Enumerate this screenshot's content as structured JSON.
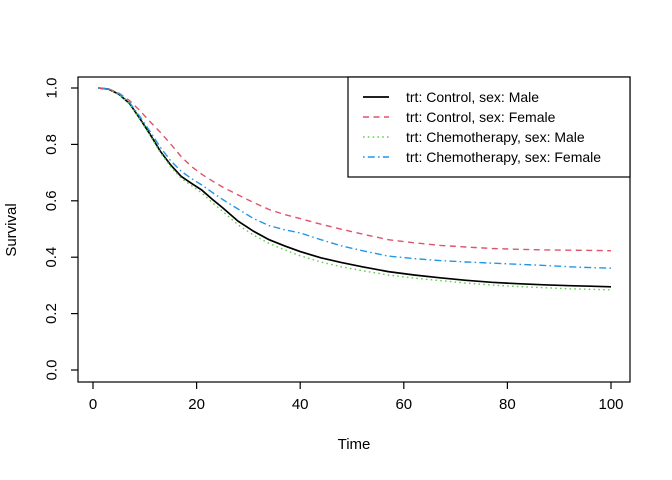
{
  "figure": {
    "background": "#ffffff",
    "frame_color": "#000000"
  },
  "chart_data": {
    "type": "line",
    "title": "",
    "xlabel": "Time",
    "ylabel": "Survival",
    "xlim": [
      0,
      100
    ],
    "ylim": [
      0.0,
      1.0
    ],
    "x_ticks": [
      0,
      20,
      40,
      60,
      80,
      100
    ],
    "x_tick_labels": [
      "0",
      "20",
      "40",
      "60",
      "80",
      "100"
    ],
    "y_ticks": [
      0.0,
      0.2,
      0.4,
      0.6,
      0.8,
      1.0
    ],
    "y_tick_labels": [
      "0.0",
      "0.2",
      "0.4",
      "0.6",
      "0.8",
      "1.0"
    ],
    "grid": false,
    "legend_position": "topright",
    "series": [
      {
        "name": "trt: Control, sex: Male",
        "color": "#000000",
        "linetype": "solid",
        "width": 1.7,
        "points": [
          [
            1,
            1.0
          ],
          [
            3,
            0.996
          ],
          [
            5,
            0.978
          ],
          [
            7,
            0.946
          ],
          [
            9,
            0.893
          ],
          [
            11,
            0.836
          ],
          [
            13,
            0.776
          ],
          [
            15,
            0.727
          ],
          [
            17,
            0.687
          ],
          [
            19,
            0.662
          ],
          [
            21,
            0.638
          ],
          [
            23,
            0.606
          ],
          [
            25,
            0.576
          ],
          [
            28,
            0.528
          ],
          [
            31,
            0.492
          ],
          [
            34,
            0.462
          ],
          [
            37,
            0.44
          ],
          [
            40,
            0.42
          ],
          [
            44,
            0.398
          ],
          [
            48,
            0.381
          ],
          [
            52,
            0.366
          ],
          [
            57,
            0.349
          ],
          [
            62,
            0.337
          ],
          [
            67,
            0.327
          ],
          [
            72,
            0.318
          ],
          [
            77,
            0.311
          ],
          [
            82,
            0.306
          ],
          [
            87,
            0.302
          ],
          [
            92,
            0.299
          ],
          [
            96,
            0.297
          ],
          [
            100,
            0.295
          ]
        ]
      },
      {
        "name": "trt: Control, sex: Female",
        "color": "#DF536B",
        "linetype": "dashed",
        "width": 1.4,
        "points": [
          [
            1,
            1.0
          ],
          [
            3,
            0.997
          ],
          [
            5,
            0.982
          ],
          [
            7,
            0.956
          ],
          [
            9,
            0.921
          ],
          [
            11,
            0.881
          ],
          [
            13,
            0.843
          ],
          [
            15,
            0.801
          ],
          [
            17,
            0.757
          ],
          [
            19,
            0.722
          ],
          [
            21,
            0.694
          ],
          [
            23,
            0.671
          ],
          [
            25,
            0.649
          ],
          [
            28,
            0.621
          ],
          [
            31,
            0.594
          ],
          [
            34,
            0.569
          ],
          [
            37,
            0.551
          ],
          [
            40,
            0.537
          ],
          [
            44,
            0.517
          ],
          [
            48,
            0.499
          ],
          [
            52,
            0.482
          ],
          [
            57,
            0.462
          ],
          [
            62,
            0.451
          ],
          [
            67,
            0.442
          ],
          [
            72,
            0.436
          ],
          [
            77,
            0.431
          ],
          [
            82,
            0.428
          ],
          [
            87,
            0.426
          ],
          [
            92,
            0.425
          ],
          [
            96,
            0.424
          ],
          [
            100,
            0.423
          ]
        ]
      },
      {
        "name": "trt: Chemotherapy, sex: Male",
        "color": "#61D04F",
        "linetype": "dotted",
        "width": 1.4,
        "points": [
          [
            1,
            1.0
          ],
          [
            3,
            0.996
          ],
          [
            5,
            0.977
          ],
          [
            7,
            0.944
          ],
          [
            9,
            0.89
          ],
          [
            11,
            0.832
          ],
          [
            13,
            0.771
          ],
          [
            15,
            0.721
          ],
          [
            17,
            0.68
          ],
          [
            19,
            0.654
          ],
          [
            21,
            0.628
          ],
          [
            23,
            0.594
          ],
          [
            25,
            0.563
          ],
          [
            28,
            0.515
          ],
          [
            31,
            0.478
          ],
          [
            34,
            0.449
          ],
          [
            37,
            0.426
          ],
          [
            40,
            0.405
          ],
          [
            44,
            0.383
          ],
          [
            48,
            0.366
          ],
          [
            52,
            0.352
          ],
          [
            57,
            0.337
          ],
          [
            62,
            0.326
          ],
          [
            67,
            0.317
          ],
          [
            72,
            0.308
          ],
          [
            77,
            0.301
          ],
          [
            82,
            0.296
          ],
          [
            87,
            0.292
          ],
          [
            92,
            0.288
          ],
          [
            96,
            0.286
          ],
          [
            100,
            0.284
          ]
        ]
      },
      {
        "name": "trt: Chemotherapy, sex: Female",
        "color": "#2297E6",
        "linetype": "dotdash",
        "width": 1.4,
        "points": [
          [
            1,
            1.0
          ],
          [
            3,
            0.996
          ],
          [
            5,
            0.98
          ],
          [
            7,
            0.95
          ],
          [
            9,
            0.9
          ],
          [
            11,
            0.846
          ],
          [
            13,
            0.79
          ],
          [
            15,
            0.742
          ],
          [
            17,
            0.705
          ],
          [
            19,
            0.679
          ],
          [
            21,
            0.656
          ],
          [
            23,
            0.63
          ],
          [
            25,
            0.605
          ],
          [
            28,
            0.571
          ],
          [
            31,
            0.537
          ],
          [
            34,
            0.512
          ],
          [
            37,
            0.497
          ],
          [
            40,
            0.486
          ],
          [
            44,
            0.462
          ],
          [
            48,
            0.44
          ],
          [
            52,
            0.423
          ],
          [
            57,
            0.404
          ],
          [
            62,
            0.395
          ],
          [
            67,
            0.388
          ],
          [
            72,
            0.383
          ],
          [
            77,
            0.379
          ],
          [
            82,
            0.375
          ],
          [
            87,
            0.371
          ],
          [
            92,
            0.366
          ],
          [
            96,
            0.363
          ],
          [
            100,
            0.361
          ]
        ]
      }
    ],
    "legend_order": [
      0,
      1,
      2,
      3
    ]
  }
}
